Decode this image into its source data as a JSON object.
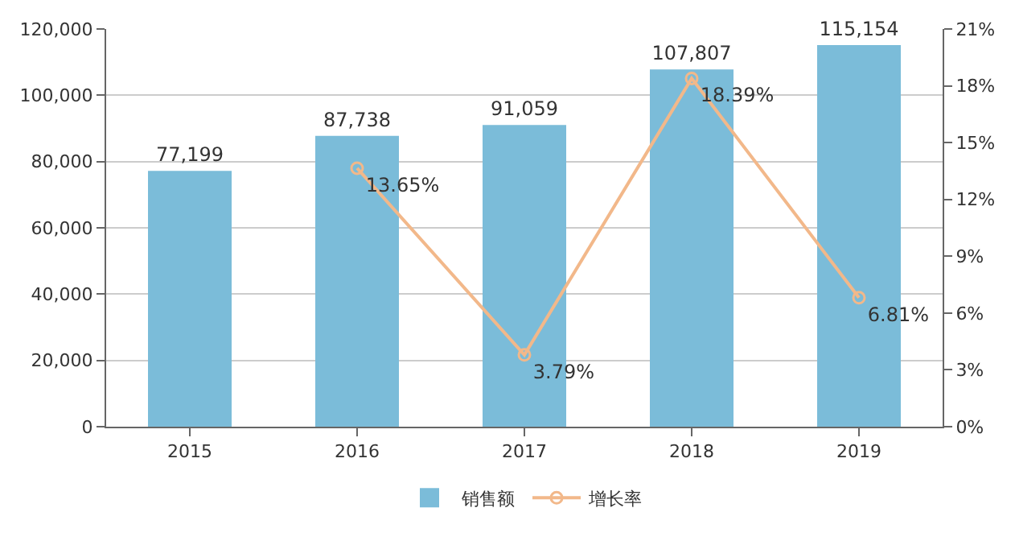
{
  "chart_data": {
    "type": "bar",
    "categories": [
      "2015",
      "2016",
      "2017",
      "2018",
      "2019"
    ],
    "series": [
      {
        "name": "销售额",
        "color": "#7bbcd9",
        "values": [
          77199,
          87738,
          91059,
          107807,
          115154
        ],
        "value_labels": [
          "77,199",
          "87,738",
          "91,059",
          "107,807",
          "115,154"
        ]
      },
      {
        "name": "增长率",
        "type": "line",
        "axis": "y2",
        "color": "#f2b88a",
        "values": [
          null,
          13.65,
          3.79,
          18.39,
          6.81
        ],
        "value_labels": [
          null,
          "13.65%",
          "3.79%",
          "18.39%",
          "6.81%"
        ],
        "marker": "circle"
      }
    ],
    "ylim": [
      0,
      120000
    ],
    "yticks": [
      0,
      {
        "value": 20000,
        "label": "20,000"
      },
      {
        "value": 40000,
        "label": "40,000"
      },
      {
        "value": 60000,
        "label": "60,000"
      },
      {
        "value": 80000,
        "label": "80,000"
      },
      {
        "value": 100000,
        "label": "100,000"
      },
      {
        "value": 120000,
        "label": "120,000"
      }
    ],
    "y2lim": [
      0,
      21
    ],
    "y2ticks": [
      {
        "value": 0,
        "label": "0%"
      },
      {
        "value": 3,
        "label": "3%"
      },
      {
        "value": 6,
        "label": "6%"
      },
      {
        "value": 9,
        "label": "9%"
      },
      {
        "value": 12,
        "label": "12%"
      },
      {
        "value": 15,
        "label": "15%"
      },
      {
        "value": 18,
        "label": "18%"
      },
      {
        "value": 21,
        "label": "21%"
      }
    ],
    "grid": "y",
    "legend": "bottom"
  }
}
